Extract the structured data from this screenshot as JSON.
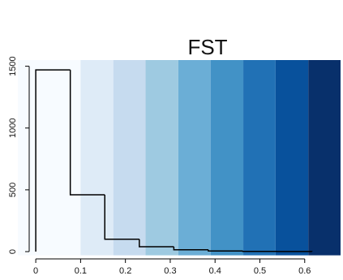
{
  "chart_data": {
    "type": "histogram",
    "title": "FST",
    "bins": [
      0,
      0.077,
      0.154,
      0.231,
      0.308,
      0.385,
      0.462,
      0.539,
      0.616
    ],
    "values": [
      1470,
      460,
      100,
      40,
      15,
      5,
      2,
      1
    ],
    "color": "#000000",
    "band_edges": [
      -0.04,
      0.1,
      0.173,
      0.245,
      0.318,
      0.39,
      0.463,
      0.535,
      0.608,
      0.68
    ],
    "band_colors": [
      "#F7FBFF",
      "#DEEBF7",
      "#C6DBEF",
      "#9ECAE1",
      "#6BAED6",
      "#4292C6",
      "#2171B5",
      "#08519C",
      "#08306B"
    ],
    "xlim": [
      -0.04,
      0.68
    ],
    "xticks": [
      0,
      0.1,
      0.2,
      0.3,
      0.4,
      0.5,
      0.6
    ],
    "ylim": [
      -30,
      1550
    ],
    "yticks": [
      0,
      500,
      1000,
      1500
    ]
  }
}
